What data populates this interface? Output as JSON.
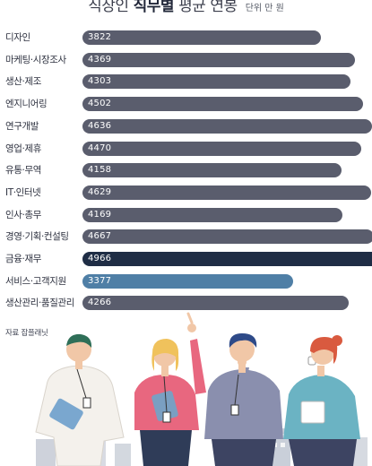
{
  "title": {
    "prefix": "직장인",
    "emphasis": "직무별",
    "suffix": "평균 연봉",
    "unit": "단위 만 원"
  },
  "source": "자료 잡플래닛",
  "colors": {
    "default_bar": "#5a5d6d",
    "highlight_max": "#1f2d45",
    "highlight_min": "#4f7fa6"
  },
  "chart_data": {
    "type": "bar",
    "orientation": "horizontal",
    "title": "직장인 직무별 평균 연봉",
    "unit": "단위 만 원",
    "categories": [
      "디자인",
      "마케팅·시장조사",
      "생산·제조",
      "엔지니어링",
      "연구개발",
      "영업·제휴",
      "유통·무역",
      "IT·인터넷",
      "인사·총무",
      "경영·기획·컨설팅",
      "금융·재무",
      "서비스·고객지원",
      "생산관리·품질관리"
    ],
    "values": [
      3822,
      4369,
      4303,
      4502,
      4636,
      4470,
      4158,
      4629,
      4169,
      4667,
      4966,
      3377,
      4266
    ],
    "value_labels": [
      "3822",
      "4369",
      "4303",
      "4502",
      "4636",
      "4470",
      "4158",
      "4629",
      "4169",
      "4667",
      "4966",
      "3377",
      "4266"
    ],
    "highlight": {
      "max_category": "금융·재무",
      "min_category": "서비스·고객지원"
    },
    "grid": false,
    "legend": "none"
  }
}
